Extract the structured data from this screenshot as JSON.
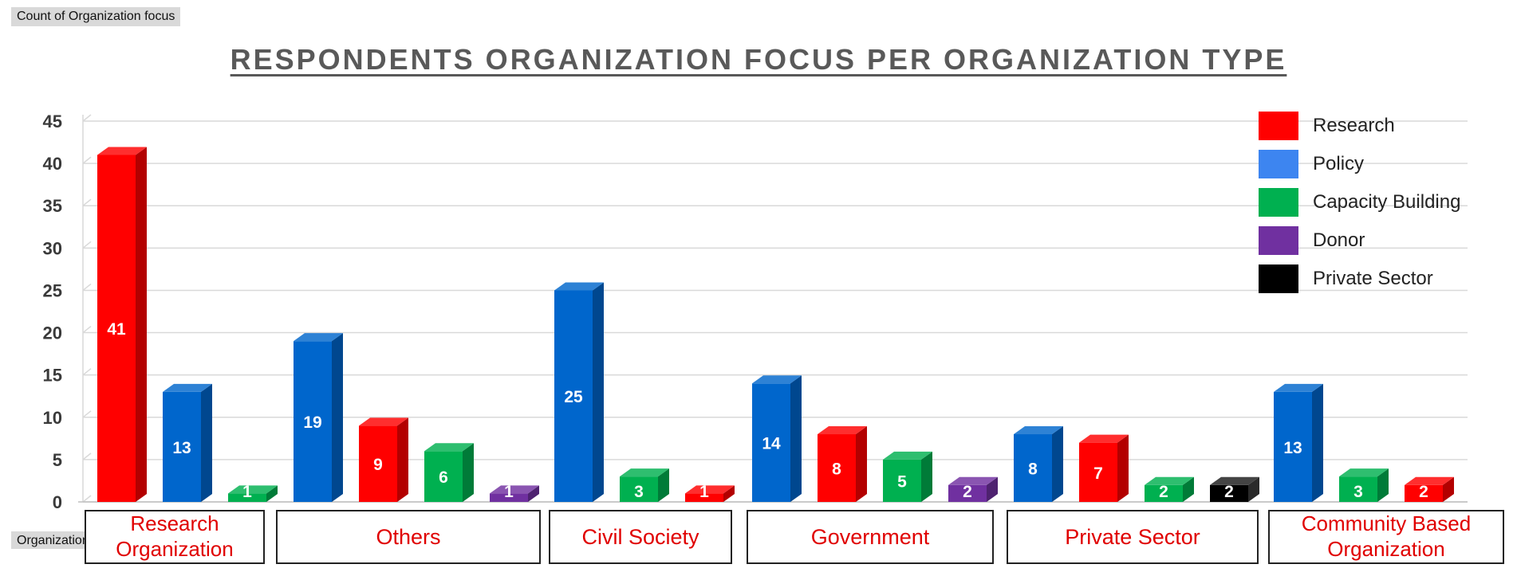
{
  "pivot_tags": {
    "count_label": "Count of Organization focus",
    "row_label": "Organization type"
  },
  "chart_data": {
    "type": "bar",
    "title": "RESPONDENTS ORGANIZATION FOCUS PER ORGANIZATION TYPE",
    "ylim": [
      0,
      45
    ],
    "yticks": [
      0,
      5,
      10,
      15,
      20,
      25,
      30,
      35,
      40,
      45
    ],
    "grid": true,
    "legend_position": "top-right",
    "series_colors": {
      "Research": "#ff0000",
      "Policy": "#0066cc",
      "Capacity Building": "#00b050",
      "Donor": "#7030a0",
      "Private Sector": "#000000"
    },
    "legend": [
      {
        "name": "Research",
        "color": "#ff0000"
      },
      {
        "name": "Policy",
        "color": "#3d85f0"
      },
      {
        "name": "Capacity Building",
        "color": "#00b050"
      },
      {
        "name": "Donor",
        "color": "#7030a0"
      },
      {
        "name": "Private Sector",
        "color": "#000000"
      }
    ],
    "groups": [
      {
        "category": "Research Organization",
        "bars": [
          {
            "series": "Research",
            "value": 41
          },
          {
            "series": "Policy",
            "value": 13
          },
          {
            "series": "Capacity Building",
            "value": 1
          }
        ]
      },
      {
        "category": "Others",
        "bars": [
          {
            "series": "Policy",
            "value": 19
          },
          {
            "series": "Research",
            "value": 9
          },
          {
            "series": "Capacity Building",
            "value": 6
          },
          {
            "series": "Donor",
            "value": 1
          }
        ]
      },
      {
        "category": "Civil Society",
        "bars": [
          {
            "series": "Policy",
            "value": 25
          },
          {
            "series": "Capacity Building",
            "value": 3
          },
          {
            "series": "Research",
            "value": 1
          }
        ]
      },
      {
        "category": "Government",
        "bars": [
          {
            "series": "Policy",
            "value": 14
          },
          {
            "series": "Research",
            "value": 8
          },
          {
            "series": "Capacity Building",
            "value": 5
          },
          {
            "series": "Donor",
            "value": 2
          }
        ]
      },
      {
        "category": "Private Sector",
        "bars": [
          {
            "series": "Policy",
            "value": 8
          },
          {
            "series": "Research",
            "value": 7
          },
          {
            "series": "Capacity Building",
            "value": 2
          },
          {
            "series": "Private Sector",
            "value": 2
          }
        ]
      },
      {
        "category": "Community Based Organization",
        "bars": [
          {
            "series": "Policy",
            "value": 13
          },
          {
            "series": "Capacity Building",
            "value": 3
          },
          {
            "series": "Research",
            "value": 2
          }
        ]
      }
    ]
  }
}
